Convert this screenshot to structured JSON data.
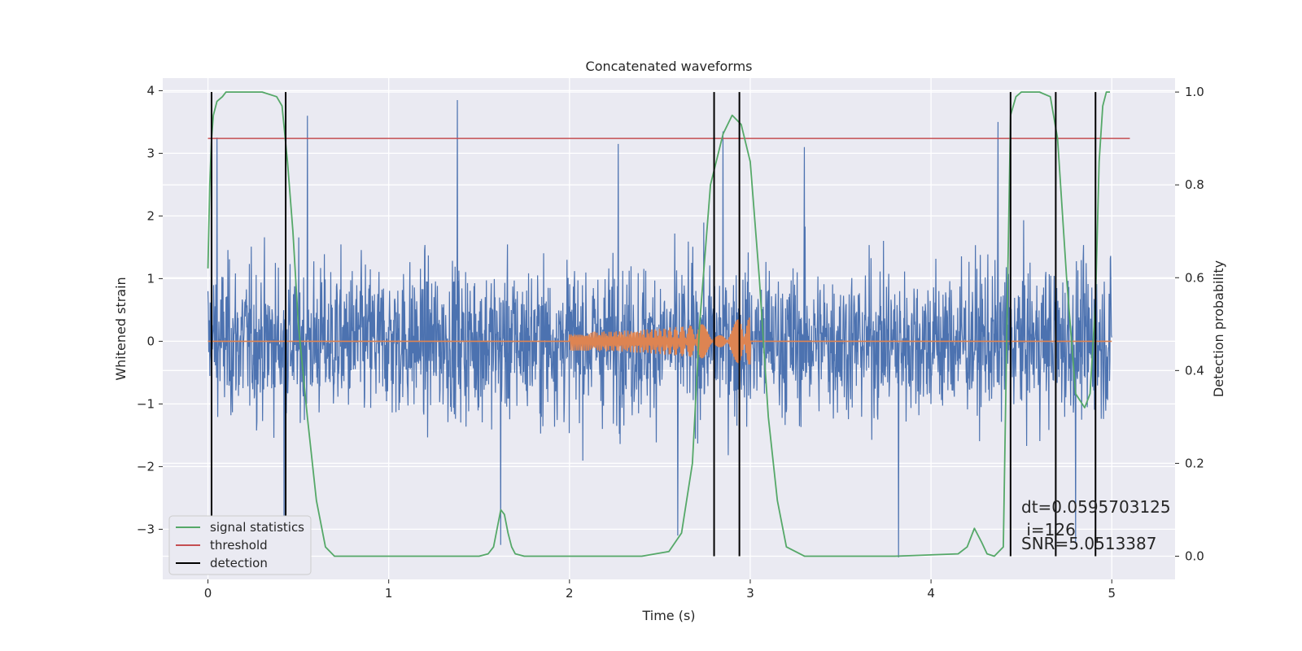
{
  "chart_data": {
    "type": "line",
    "title": "Concatenated waveforms",
    "xlabel": "Time (s)",
    "ylabel": "Whitened strain",
    "y2label": "Detection probability",
    "xlim": [
      -0.25,
      5.35
    ],
    "ylim": [
      -3.8,
      4.2
    ],
    "y2lim": [
      -0.05,
      1.03
    ],
    "xticks": [
      0,
      1,
      2,
      3,
      4,
      5
    ],
    "xtick_labels": [
      "0",
      "1",
      "2",
      "3",
      "4",
      "5"
    ],
    "yticks": [
      -3,
      -2,
      -1,
      0,
      1,
      2,
      3,
      4
    ],
    "ytick_labels": [
      "−3",
      "−2",
      "−1",
      "0",
      "1",
      "2",
      "3",
      "4"
    ],
    "y2ticks": [
      0.0,
      0.2,
      0.4,
      0.6,
      0.8,
      1.0
    ],
    "y2tick_labels": [
      "0.0",
      "0.2",
      "0.4",
      "0.6",
      "0.8",
      "1.0"
    ],
    "grid": true,
    "legend_position": "lower-left",
    "series": [
      {
        "axis": "left",
        "color": "#4c72b0",
        "kind": "noise",
        "x_range": [
          0,
          5
        ],
        "typical_range": [
          -2.3,
          2.3
        ],
        "peaks": [
          {
            "x": 0.05,
            "y": 3.25
          },
          {
            "x": 0.55,
            "y": 3.6
          },
          {
            "x": 1.38,
            "y": 3.85
          },
          {
            "x": 2.27,
            "y": 3.15
          },
          {
            "x": 2.85,
            "y": 3.35
          },
          {
            "x": 3.3,
            "y": 3.1
          },
          {
            "x": 4.37,
            "y": 3.5
          },
          {
            "x": 0.42,
            "y": -3.4
          },
          {
            "x": 1.62,
            "y": -3.25
          },
          {
            "x": 2.6,
            "y": -3.1
          },
          {
            "x": 3.82,
            "y": -3.45
          },
          {
            "x": 4.8,
            "y": -3.2
          }
        ]
      },
      {
        "axis": "left",
        "color": "#dd8452",
        "kind": "chirp",
        "x_range": [
          0,
          5
        ],
        "chirp_start": 2.0,
        "chirp_end": 3.0,
        "amplitude_start": 0.15,
        "amplitude_end": 0.38
      },
      {
        "name": "signal statistics",
        "axis": "right",
        "color": "#55a868",
        "kind": "line",
        "x": [
          0.0,
          0.01,
          0.02,
          0.03,
          0.05,
          0.08,
          0.1,
          0.15,
          0.2,
          0.3,
          0.38,
          0.41,
          0.44,
          0.47,
          0.5,
          0.55,
          0.6,
          0.65,
          0.7,
          0.8,
          1.0,
          1.5,
          1.55,
          1.58,
          1.6,
          1.62,
          1.64,
          1.66,
          1.68,
          1.7,
          1.75,
          2.0,
          2.4,
          2.55,
          2.62,
          2.68,
          2.72,
          2.78,
          2.85,
          2.9,
          2.95,
          3.0,
          3.05,
          3.1,
          3.15,
          3.2,
          3.3,
          3.8,
          4.15,
          4.2,
          4.24,
          4.28,
          4.31,
          4.35,
          4.4,
          4.42,
          4.44,
          4.47,
          4.5,
          4.6,
          4.66,
          4.7,
          4.75,
          4.8,
          4.85,
          4.88,
          4.91,
          4.93,
          4.95,
          4.97,
          4.99
        ],
        "values": [
          0.62,
          0.8,
          0.9,
          0.95,
          0.98,
          0.99,
          1.0,
          1.0,
          1.0,
          1.0,
          0.99,
          0.97,
          0.85,
          0.7,
          0.5,
          0.3,
          0.12,
          0.02,
          0.0,
          0.0,
          0.0,
          0.0,
          0.005,
          0.02,
          0.06,
          0.1,
          0.09,
          0.05,
          0.02,
          0.005,
          0.0,
          0.0,
          0.0,
          0.01,
          0.05,
          0.2,
          0.5,
          0.8,
          0.91,
          0.95,
          0.93,
          0.85,
          0.6,
          0.3,
          0.12,
          0.02,
          0.0,
          0.0,
          0.005,
          0.02,
          0.06,
          0.03,
          0.005,
          0.0,
          0.02,
          0.5,
          0.95,
          0.99,
          1.0,
          1.0,
          0.99,
          0.9,
          0.6,
          0.35,
          0.32,
          0.35,
          0.55,
          0.85,
          0.97,
          1.0,
          1.0
        ]
      },
      {
        "name": "threshold",
        "axis": "right",
        "color": "#c44e52",
        "kind": "hline",
        "value": 0.9,
        "x_range": [
          0,
          5.1
        ]
      },
      {
        "name": "detection",
        "axis": "right",
        "color": "#000000",
        "kind": "vlines",
        "x": [
          0.02,
          0.43,
          2.8,
          2.94,
          4.44,
          4.69,
          4.91
        ],
        "y_range": [
          0.0,
          1.0
        ]
      }
    ],
    "annotations": [
      "dt=0.0595703125",
      " i=126",
      "SNR=5.0513387"
    ]
  }
}
